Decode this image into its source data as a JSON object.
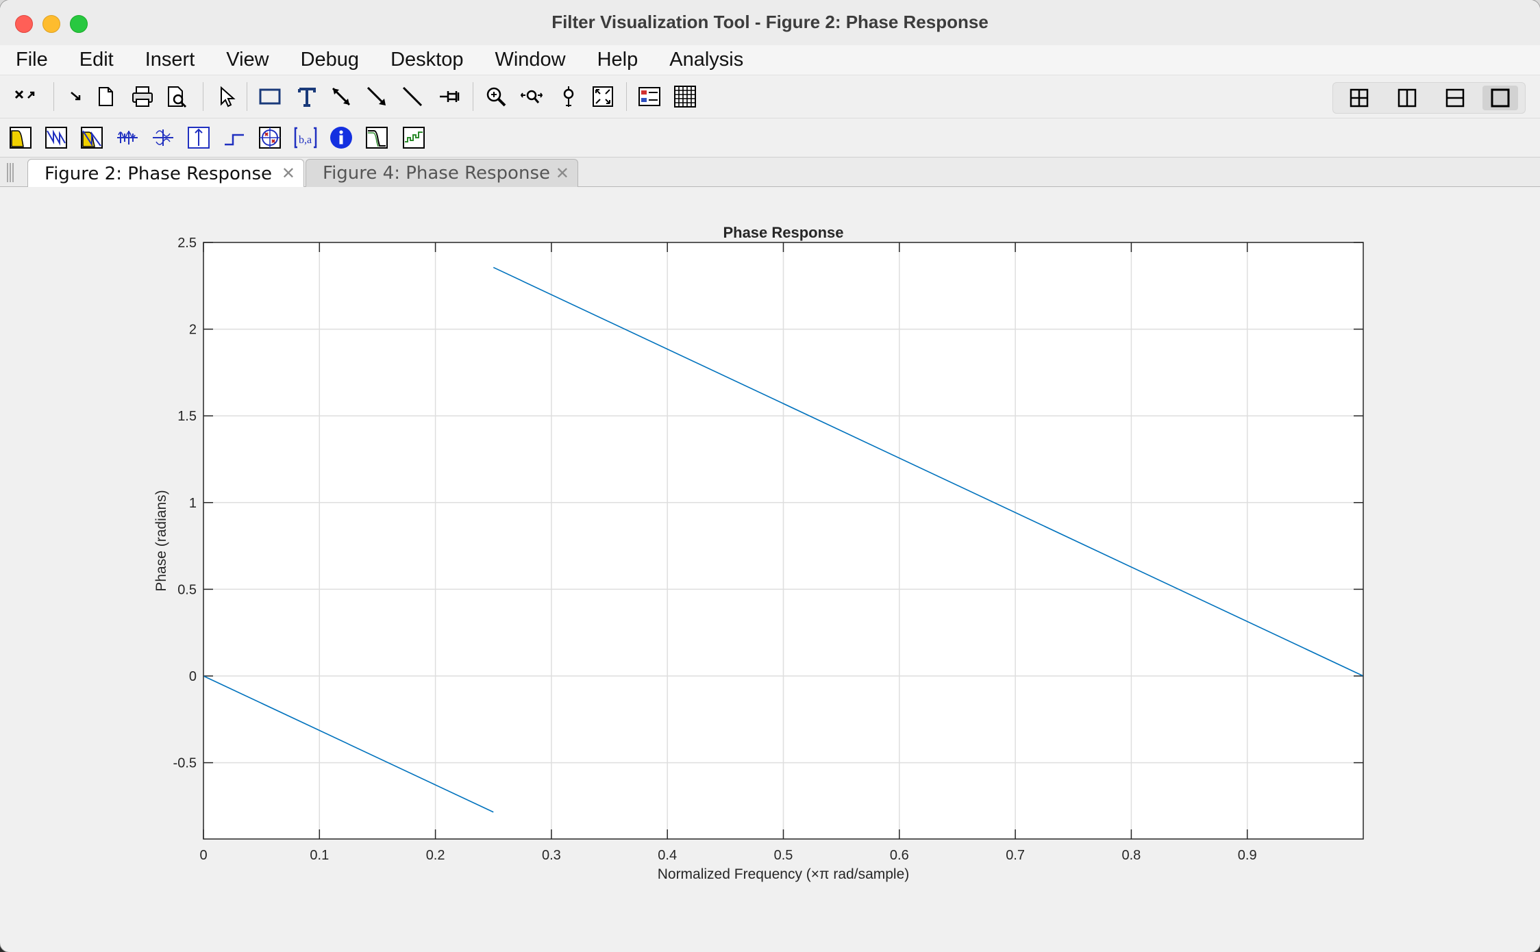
{
  "window": {
    "title": "Filter Visualization Tool - Figure 2: Phase Response"
  },
  "menu": {
    "items": [
      "File",
      "Edit",
      "Insert",
      "View",
      "Debug",
      "Desktop",
      "Window",
      "Help",
      "Analysis"
    ]
  },
  "toolbar": {
    "icons": [
      "undock-icon",
      "arrow-icon",
      "new-figure-icon",
      "print-icon",
      "print-preview-icon",
      "select-pointer-icon",
      "rectangle-icon",
      "text-icon",
      "double-arrow-icon",
      "arrow-line-icon",
      "line-icon",
      "pin-icon",
      "zoom-in-icon",
      "pan-icon",
      "data-cursor-icon",
      "zoom-fit-icon",
      "legend-icon",
      "grid-icon"
    ],
    "layout_icons": [
      "grid-2x2-icon",
      "split-vertical-icon",
      "split-horizontal-icon",
      "single-panel-icon"
    ]
  },
  "analysis_toolbar": {
    "icons": [
      "magnitude-response-icon",
      "phase-response-icon",
      "magnitude-phase-icon",
      "group-delay-icon",
      "phase-delay-icon",
      "impulse-response-icon",
      "step-response-icon",
      "pole-zero-icon",
      "filter-coefficients-icon",
      "filter-info-icon",
      "magnitude-estimate-icon",
      "round-off-noise-icon"
    ]
  },
  "tabs": [
    {
      "label": "Figure 2: Phase Response",
      "active": true
    },
    {
      "label": "Figure 4: Phase Response",
      "active": false
    }
  ],
  "tab_close_glyph": "✕",
  "chart_data": {
    "type": "line",
    "title": "Phase Response",
    "xlabel": "Normalized Frequency (×π rad/sample)",
    "ylabel": "Phase (radians)",
    "xlim": [
      0,
      1
    ],
    "ylim": [
      -0.94,
      2.5
    ],
    "xticks": [
      0,
      0.1,
      0.2,
      0.3,
      0.4,
      0.5,
      0.6,
      0.7,
      0.8,
      0.9
    ],
    "yticks": [
      -0.5,
      0,
      0.5,
      1,
      1.5,
      2,
      2.5
    ],
    "xtick_labels": [
      "0",
      "0.1",
      "0.2",
      "0.3",
      "0.4",
      "0.5",
      "0.6",
      "0.7",
      "0.8",
      "0.9"
    ],
    "ytick_labels": [
      "-0.5",
      "0",
      "0.5",
      "1",
      "1.5",
      "2",
      "2.5"
    ],
    "grid": true,
    "line_color": "#0072BD",
    "series": [
      {
        "segments": [
          {
            "x": [
              0,
              0.25
            ],
            "y": [
              0,
              -0.785
            ]
          },
          {
            "x": [
              0.25,
              1.0
            ],
            "y": [
              2.356,
              0
            ]
          }
        ]
      }
    ]
  }
}
